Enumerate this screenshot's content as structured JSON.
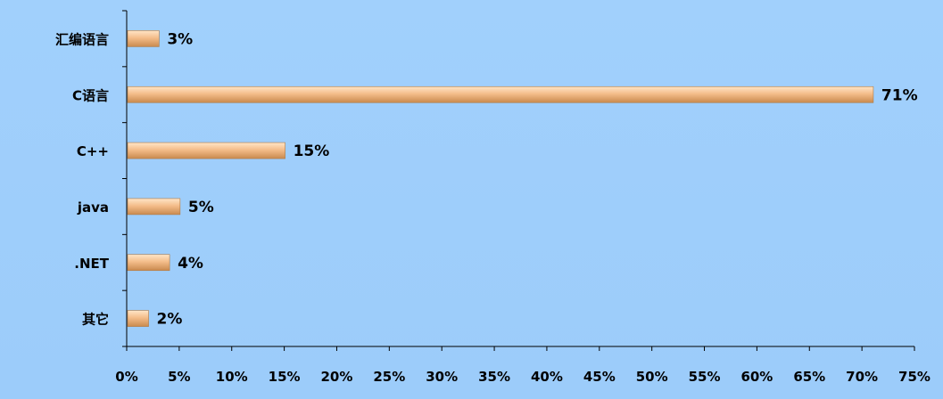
{
  "chart_data": {
    "type": "bar",
    "orientation": "horizontal",
    "categories": [
      "汇编语言",
      "C语言",
      "C++",
      "java",
      ".NET",
      "其它"
    ],
    "values": [
      3,
      71,
      15,
      5,
      4,
      2
    ],
    "value_labels": [
      "3%",
      "71%",
      "15%",
      "5%",
      "4%",
      "2%"
    ],
    "xlim": [
      0,
      75
    ],
    "x_ticks": [
      0,
      5,
      10,
      15,
      20,
      25,
      30,
      35,
      40,
      45,
      50,
      55,
      60,
      65,
      70,
      75
    ],
    "x_tick_labels": [
      "0%",
      "5%",
      "10%",
      "15%",
      "20%",
      "25%",
      "30%",
      "35%",
      "40%",
      "45%",
      "50%",
      "55%",
      "60%",
      "65%",
      "70%",
      "75%"
    ],
    "title": "",
    "xlabel": "",
    "ylabel": "",
    "grid": false,
    "legend": "none",
    "colors": {
      "background": "#9cccfa",
      "bar_light": "#ffe6c8",
      "bar_mid": "#f4bd8a",
      "bar_dark": "#c98a4e",
      "axis": "#000000"
    }
  }
}
